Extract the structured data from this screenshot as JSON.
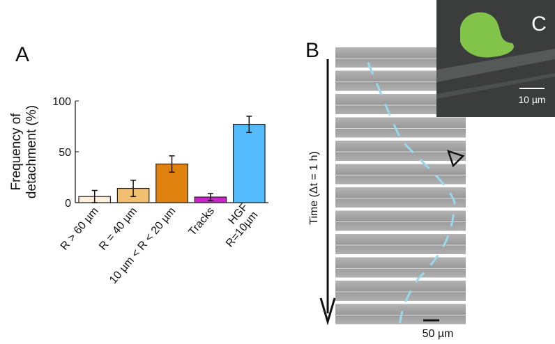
{
  "chart_data": {
    "type": "bar",
    "y_label": "Frequency of\ndetachment (%)",
    "categories": [
      "R > 60 µm",
      "R = 40 µm",
      "10 µm < R < 20 µm",
      "Tracks",
      "HGF\nR=10µm"
    ],
    "values": [
      6,
      14,
      38,
      5.5,
      77
    ],
    "errors": [
      6,
      8,
      8,
      3.5,
      8
    ],
    "colors": [
      "#fdf0dc",
      "#f0c070",
      "#e0820f",
      "#cc22cc",
      "#55bbff"
    ],
    "ylim": [
      0,
      100
    ],
    "yticks": [
      0,
      50,
      100
    ]
  },
  "panel_labels": {
    "a": "A",
    "b": "B",
    "c": "C"
  },
  "panel_b": {
    "axis_label": "Time (Δt = 1 h)",
    "scale_bar": "50 µm"
  },
  "panel_c": {
    "scale_bar": "10 µm"
  }
}
